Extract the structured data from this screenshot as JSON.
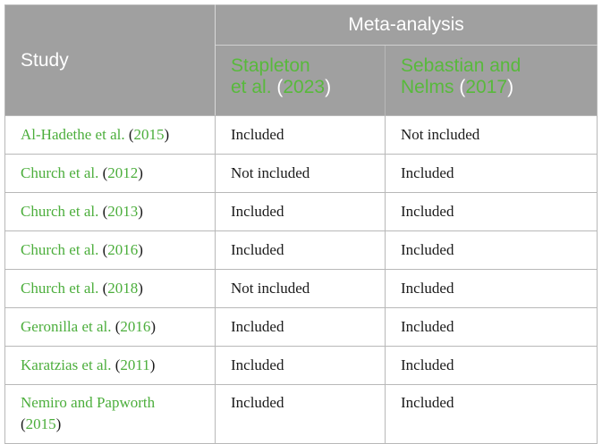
{
  "header": {
    "study_label": "Study",
    "meta_label": "Meta-analysis",
    "columns": [
      {
        "name": "Stapleton et al.",
        "year": "2023"
      },
      {
        "name": "Sebastian and Nelms",
        "year": "2017"
      }
    ]
  },
  "rows": [
    {
      "study": "Al-Hadethe et al.",
      "year": "2015",
      "a": "Included",
      "b": "Not included"
    },
    {
      "study": "Church et al.",
      "year": "2012",
      "a": "Not included",
      "b": "Included"
    },
    {
      "study": "Church et al.",
      "year": "2013",
      "a": "Included",
      "b": "Included"
    },
    {
      "study": "Church et al.",
      "year": "2016",
      "a": "Included",
      "b": "Included"
    },
    {
      "study": "Church et al.",
      "year": "2018",
      "a": "Not included",
      "b": "Included"
    },
    {
      "study": "Geronilla et al.",
      "year": "2016",
      "a": "Included",
      "b": "Included"
    },
    {
      "study": "Karatzias et al.",
      "year": "2011",
      "a": "Included",
      "b": "Included"
    },
    {
      "study": "Nemiro and Papworth",
      "year": "2015",
      "a": "Included",
      "b": "Included"
    }
  ]
}
